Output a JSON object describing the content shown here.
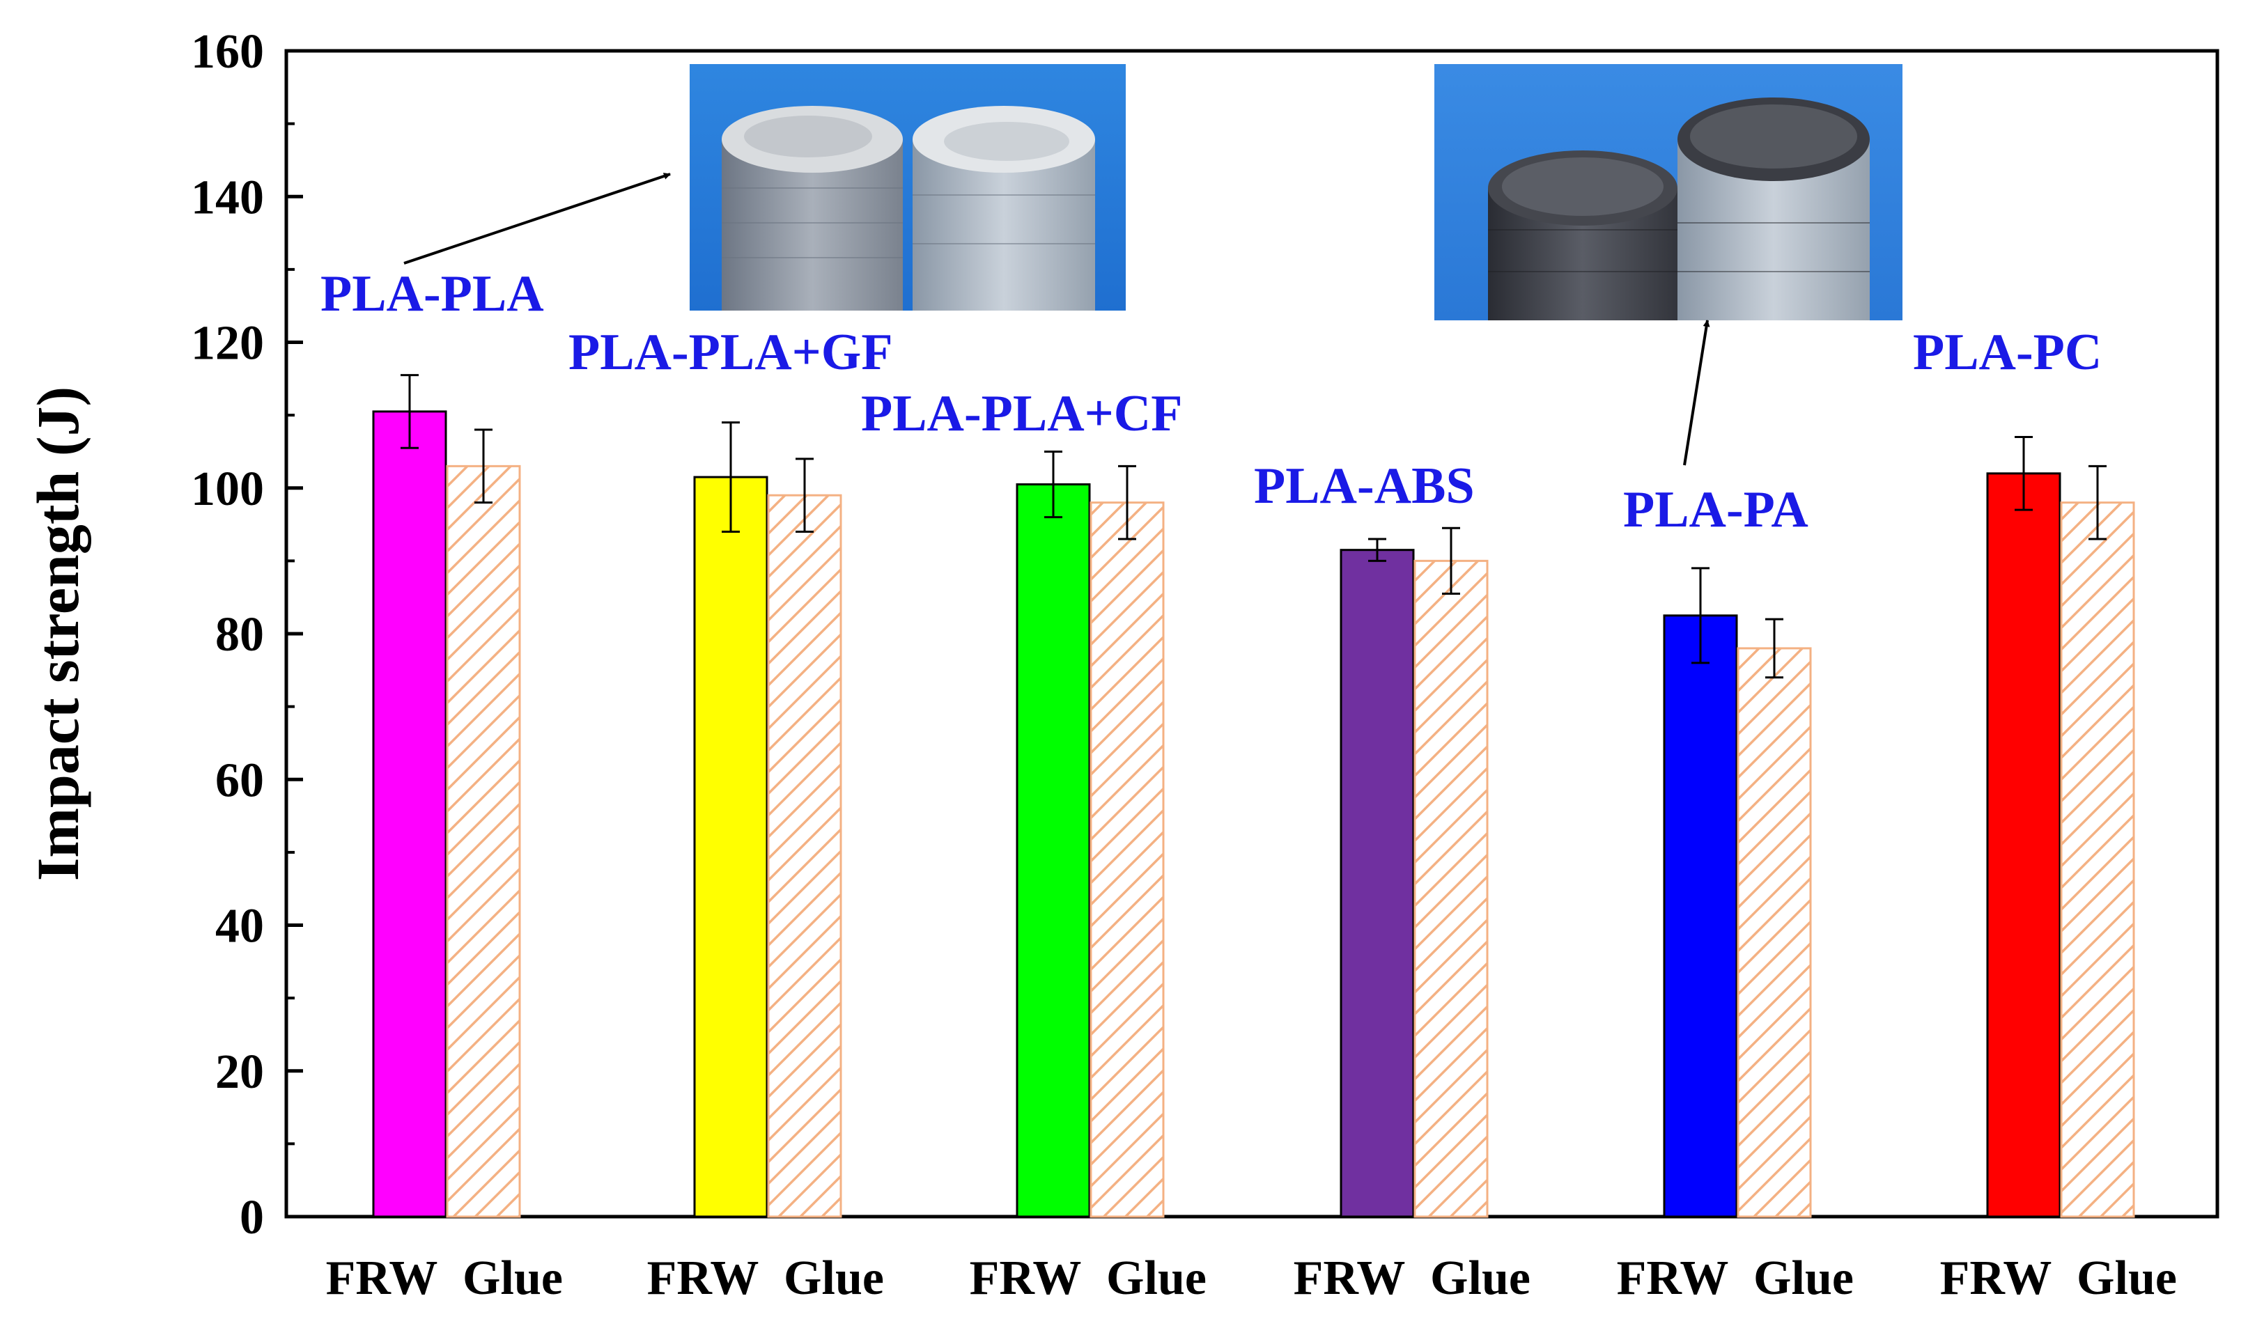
{
  "chart_data": {
    "type": "bar",
    "ylabel": "Impact strength (J)",
    "xlabel": "",
    "ylim": [
      0,
      160
    ],
    "yticks": [
      0,
      20,
      40,
      60,
      80,
      100,
      120,
      140,
      160
    ],
    "grid": false,
    "legend": "none",
    "categories": [
      "PLA-PLA",
      "PLA-PLA+GF",
      "PLA-PLA+CF",
      "PLA-ABS",
      "PLA-PA",
      "PLA-PC"
    ],
    "bar_tick_labels": [
      "FRW",
      "Glue",
      "FRW",
      "Glue",
      "FRW",
      "Glue",
      "FRW",
      "Glue",
      "FRW",
      "Glue",
      "FRW",
      "Glue"
    ],
    "series": [
      {
        "key": "FRW",
        "values": [
          110.5,
          101.5,
          100.5,
          91.5,
          82.5,
          102
        ],
        "errors": [
          5,
          7.5,
          4.5,
          1.5,
          6.5,
          5
        ],
        "colors": [
          "#ff00ff",
          "#ffff00",
          "#00ff00",
          "#7030a0",
          "#0000ff",
          "#ff0000"
        ]
      },
      {
        "key": "Glue",
        "values": [
          103,
          99,
          98,
          90,
          78,
          98
        ],
        "errors": [
          5,
          5,
          5,
          4.5,
          4,
          5
        ],
        "pattern": "diagonal-hatch",
        "hatch_color": "#f4b183"
      }
    ],
    "photo_insets": [
      {
        "subject": "white-grey 3D-printed PLA cylinders with fracture surface",
        "points_to": "PLA-PLA"
      },
      {
        "subject": "dark and grey 3D-printed cylinders with fracture surface",
        "points_to": "PLA-PA"
      }
    ]
  }
}
